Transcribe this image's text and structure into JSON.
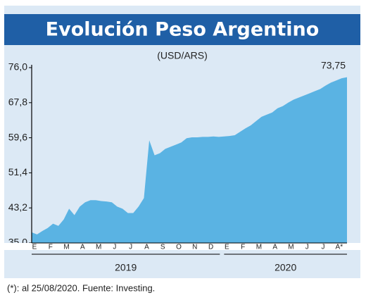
{
  "chart_data": {
    "type": "area",
    "title": "Evolución Peso Argentino",
    "subtitle": "(USD/ARS)",
    "annotation": "73,75",
    "footnote": "(*): al 25/08/2020. Fuente: Investing.",
    "color": "#5ab3e3",
    "categories": [
      "E",
      null,
      null,
      "F",
      null,
      null,
      "M",
      null,
      null,
      "A",
      null,
      null,
      "M",
      null,
      null,
      "J",
      null,
      null,
      "J",
      null,
      null,
      "A",
      null,
      null,
      "S",
      null,
      null,
      "O",
      null,
      null,
      "N",
      null,
      null,
      "D",
      null,
      null,
      "E",
      null,
      null,
      "F",
      null,
      null,
      "M",
      null,
      null,
      "A",
      null,
      null,
      "M",
      null,
      null,
      "J",
      null,
      null,
      "J",
      null,
      null,
      "A*",
      null,
      null
    ],
    "years": [
      "2019",
      "2020"
    ],
    "values": [
      37.5,
      37.0,
      37.8,
      38.5,
      39.5,
      39.0,
      40.5,
      43.0,
      41.5,
      43.5,
      44.5,
      45.0,
      45.0,
      44.8,
      44.7,
      44.5,
      43.5,
      43.0,
      42.0,
      42.0,
      43.5,
      45.5,
      59.0,
      55.5,
      56.0,
      57.0,
      57.5,
      58.0,
      58.5,
      59.5,
      59.7,
      59.7,
      59.8,
      59.8,
      59.9,
      59.8,
      59.9,
      60.0,
      60.2,
      61.0,
      61.8,
      62.5,
      63.5,
      64.5,
      65.0,
      65.5,
      66.5,
      67.0,
      67.8,
      68.5,
      69.0,
      69.5,
      70.0,
      70.5,
      71.0,
      71.8,
      72.5,
      73.0,
      73.5,
      73.75
    ],
    "ylim": [
      35,
      76
    ],
    "yticks": [
      {
        "value": 35,
        "label": "35,0"
      },
      {
        "value": 43.2,
        "label": "43,2"
      },
      {
        "value": 51.4,
        "label": "51,4"
      },
      {
        "value": 59.6,
        "label": "59,6"
      },
      {
        "value": 67.8,
        "label": "67,8"
      },
      {
        "value": 76,
        "label": "76,0"
      }
    ]
  }
}
